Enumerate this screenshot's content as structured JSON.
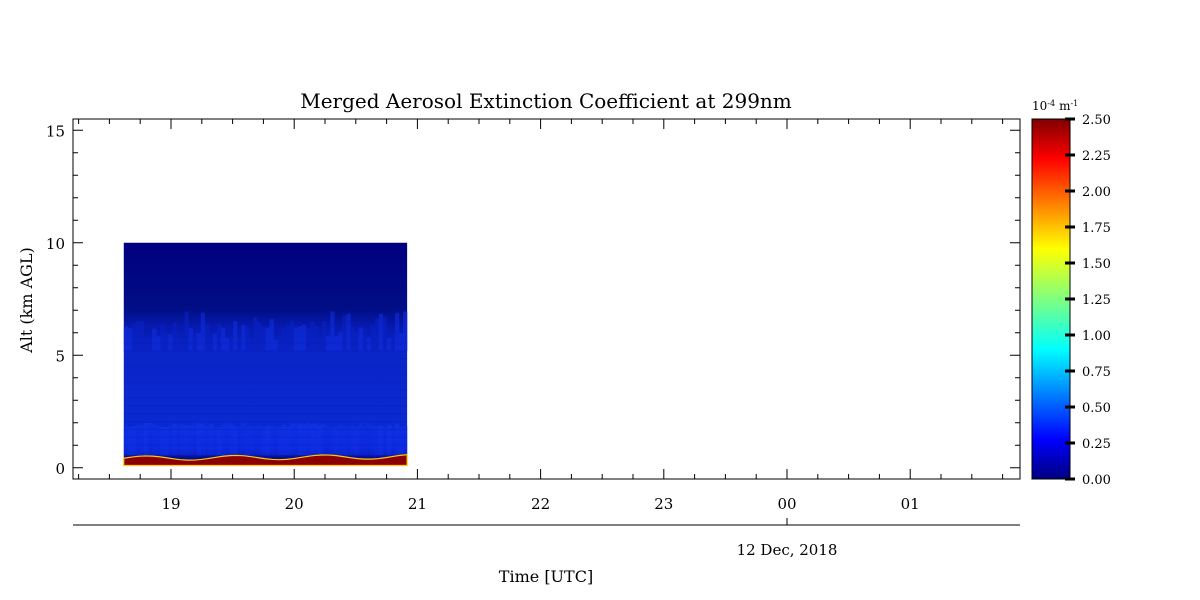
{
  "chart_data": {
    "type": "heatmap",
    "title": "Merged Aerosol Extinction Coefficient at 299nm",
    "xlabel": "Time [UTC]",
    "ylabel": "Alt (km AGL)",
    "date_label": "12 Dec, 2018",
    "x_ticks": [
      "19",
      "20",
      "21",
      "22",
      "23",
      "00",
      "01"
    ],
    "y_ticks": [
      "0",
      "5",
      "10",
      "15"
    ],
    "ylim": [
      -0.5,
      15.5
    ],
    "data_extent": {
      "time_start": "18:37",
      "time_end": "20:55",
      "alt_min_km": 0.1,
      "alt_max_km": 10
    },
    "colorbar": {
      "unit_base": "10",
      "unit_exp": "-4",
      "unit_rest": "m",
      "unit_rest_exp": "-1",
      "range": [
        0,
        2.5
      ],
      "ticks": [
        "0.00",
        "0.25",
        "0.50",
        "0.75",
        "1.00",
        "1.25",
        "1.50",
        "1.75",
        "2.00",
        "2.25",
        "2.50"
      ],
      "colormap": "jet"
    },
    "profile": [
      {
        "alt_km": 0.25,
        "value": 2.5
      },
      {
        "alt_km": 0.5,
        "value": 1.9
      },
      {
        "alt_km": 1.5,
        "value": 0.38
      },
      {
        "alt_km": 3.0,
        "value": 0.3
      },
      {
        "alt_km": 5.0,
        "value": 0.25
      },
      {
        "alt_km": 6.5,
        "value": 0.15
      },
      {
        "alt_km": 10.0,
        "value": 0.05
      }
    ]
  }
}
